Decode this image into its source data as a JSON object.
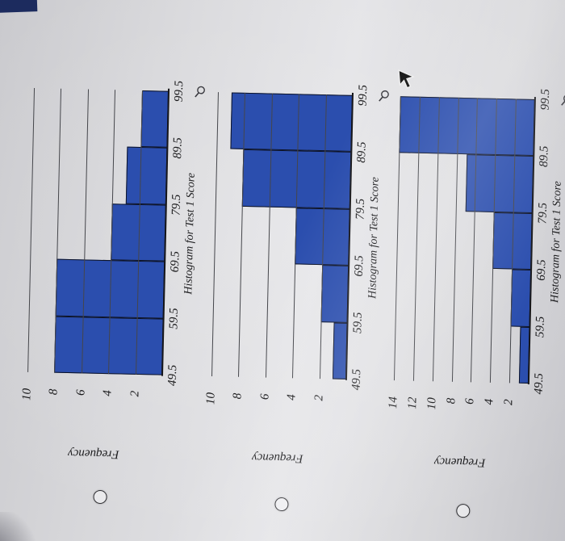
{
  "photo": {
    "corner_accent_color": "#1c2b5e",
    "background_color": "#d8d8db"
  },
  "question": {
    "options": [
      {
        "id": 1,
        "radio_state": "unselected"
      },
      {
        "id": 2,
        "radio_state": "unselected"
      },
      {
        "id": 3,
        "radio_state": "unselected"
      }
    ],
    "magnifier_icons": 3,
    "cursor": "arrow"
  },
  "chart_data": [
    {
      "type": "bar",
      "chart_kind": "histogram",
      "title": "Histogram for Test 1 Score",
      "ylabel": "Frequency",
      "x_tick_labels": [
        "49.5",
        "59.5",
        "69.5",
        "79.5",
        "89.5",
        "99.5"
      ],
      "bin_edges": [
        49.5,
        59.5,
        69.5,
        79.5,
        89.5,
        99.5
      ],
      "values": [
        8,
        8,
        4,
        3,
        2
      ],
      "ylim": [
        0,
        10
      ],
      "yticks": [
        2,
        4,
        6,
        8,
        10
      ],
      "bar_color": "#2b4eae",
      "grid": true,
      "layout_hint": "chart rotated 90 degrees counterclockwise in photo"
    },
    {
      "type": "bar",
      "chart_kind": "histogram",
      "title": "Histogram for Test 1 Score",
      "ylabel": "Frequency",
      "x_tick_labels": [
        "49.5",
        "59.5",
        "69.5",
        "79.5",
        "89.5",
        "99.5"
      ],
      "bin_edges": [
        49.5,
        59.5,
        69.5,
        79.5,
        89.5,
        99.5
      ],
      "values": [
        1,
        2,
        4,
        8,
        9
      ],
      "ylim": [
        0,
        10
      ],
      "yticks": [
        2,
        4,
        6,
        8,
        10
      ],
      "bar_color": "#2b4eae",
      "grid": true,
      "layout_hint": "chart rotated 90 degrees counterclockwise in photo"
    },
    {
      "type": "bar",
      "chart_kind": "histogram",
      "title": "Histogram for Test 1 Score",
      "ylabel": "Frequency",
      "x_tick_labels": [
        "49.5",
        "59.5",
        "69.5",
        "79.5",
        "89.5",
        "99.5"
      ],
      "bin_edges": [
        49.5,
        59.5,
        69.5,
        79.5,
        89.5,
        99.5
      ],
      "values": [
        1,
        2,
        4,
        7,
        14
      ],
      "ylim": [
        0,
        14
      ],
      "yticks": [
        2,
        4,
        6,
        8,
        10,
        12,
        14
      ],
      "bar_color": "#2b4eae",
      "grid": true,
      "layout_hint": "chart rotated 90 degrees counterclockwise in photo"
    }
  ]
}
